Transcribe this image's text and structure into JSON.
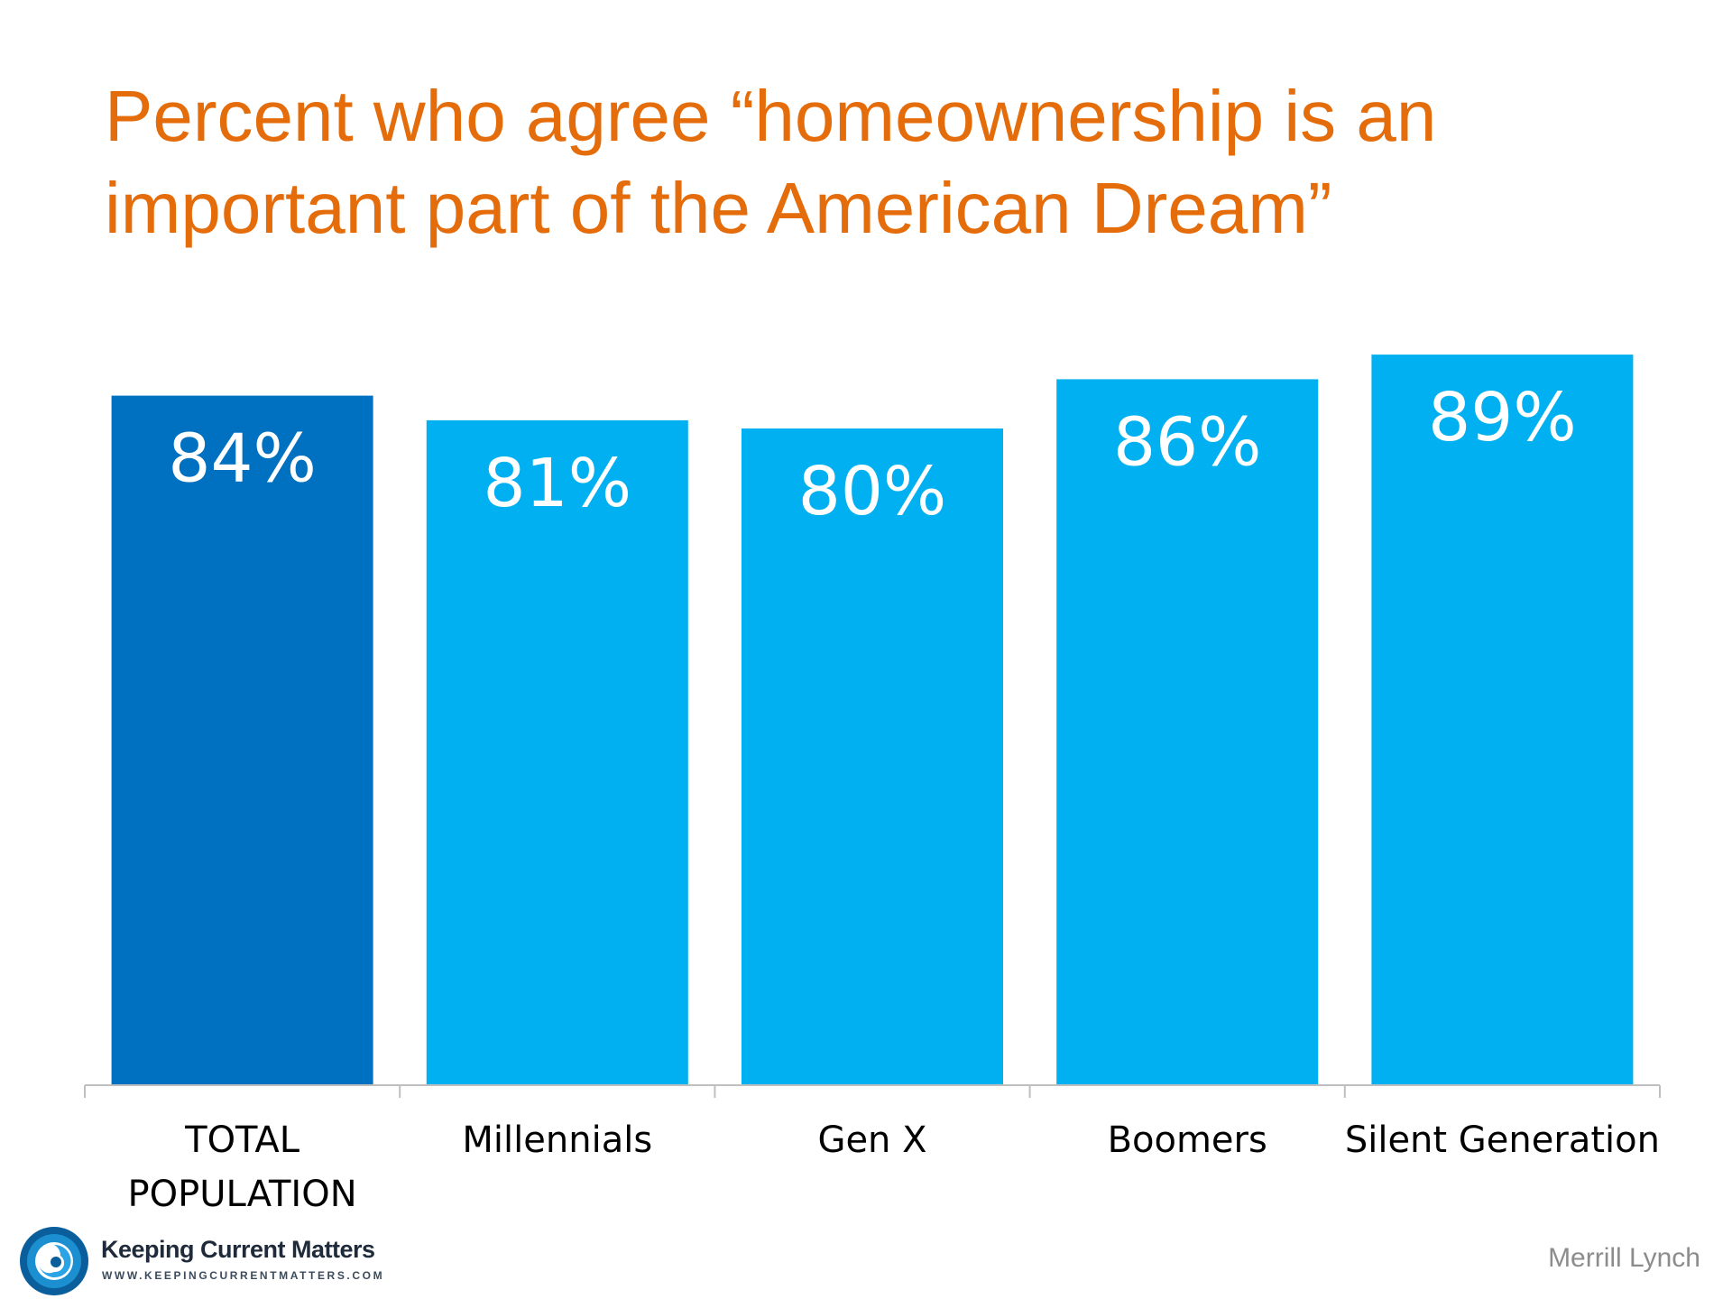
{
  "chart_data": {
    "type": "bar",
    "title": "Percent who agree “homeownership is an important part of the American Dream”",
    "categories": [
      [
        "TOTAL",
        "POPULATION"
      ],
      [
        "Millennials"
      ],
      [
        "Gen X"
      ],
      [
        "Boomers"
      ],
      [
        "Silent Generation"
      ]
    ],
    "values": [
      84,
      81,
      80,
      86,
      89
    ],
    "value_labels": [
      "84%",
      "81%",
      "80%",
      "86%",
      "89%"
    ],
    "colors": [
      "#0070C0",
      "#00B0F0",
      "#00B0F0",
      "#00B0F0",
      "#00B0F0"
    ],
    "ylim": [
      0,
      100
    ],
    "xlabel": "",
    "ylabel": "",
    "grid": false,
    "legend": "none"
  },
  "branding": {
    "logo_name": "Keeping Current Matters",
    "logo_url": "WWW.KEEPINGCURRENTMATTERS.COM",
    "source": "Merrill Lynch"
  },
  "colors": {
    "title": "#E46C0A",
    "accent_dark": "#0070C0",
    "accent_light": "#00B0F0"
  }
}
